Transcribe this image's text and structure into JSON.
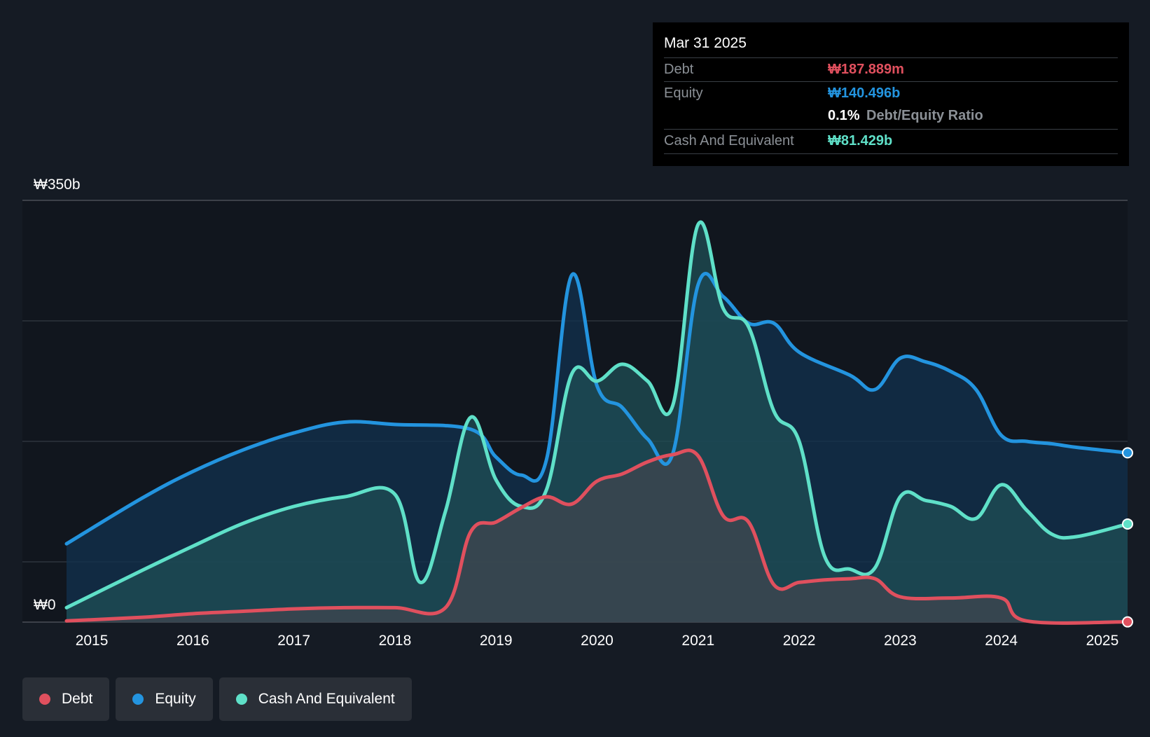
{
  "chart_data": {
    "type": "area",
    "y_unit_labels": {
      "top": "₩350b",
      "bottom": "₩0"
    },
    "ylim": [
      0,
      350
    ],
    "xlim": [
      2014.75,
      2025.25
    ],
    "x_ticks": [
      "2015",
      "2016",
      "2017",
      "2018",
      "2019",
      "2020",
      "2021",
      "2022",
      "2023",
      "2024",
      "2025"
    ],
    "grid": true,
    "series": [
      {
        "name": "Equity",
        "color": "#2394df",
        "fill": "#12314f",
        "points": [
          [
            2014.75,
            65
          ],
          [
            2015.5,
            103
          ],
          [
            2016.0,
            125
          ],
          [
            2016.5,
            143
          ],
          [
            2017.0,
            157
          ],
          [
            2017.5,
            166
          ],
          [
            2018.0,
            164
          ],
          [
            2018.75,
            160
          ],
          [
            2019.0,
            137
          ],
          [
            2019.25,
            122
          ],
          [
            2019.5,
            135
          ],
          [
            2019.75,
            288
          ],
          [
            2020.0,
            196
          ],
          [
            2020.25,
            178
          ],
          [
            2020.5,
            152
          ],
          [
            2020.75,
            140
          ],
          [
            2021.0,
            280
          ],
          [
            2021.25,
            270
          ],
          [
            2021.5,
            248
          ],
          [
            2021.75,
            248
          ],
          [
            2022.0,
            224
          ],
          [
            2022.5,
            205
          ],
          [
            2022.75,
            193
          ],
          [
            2023.0,
            219
          ],
          [
            2023.25,
            216
          ],
          [
            2023.5,
            208
          ],
          [
            2023.75,
            193
          ],
          [
            2024.0,
            155
          ],
          [
            2024.25,
            150
          ],
          [
            2024.5,
            148
          ],
          [
            2024.75,
            145
          ],
          [
            2025.25,
            140.496
          ]
        ]
      },
      {
        "name": "Cash And Equivalent",
        "color": "#5fe0c8",
        "fill": "#1f4f55",
        "points": [
          [
            2014.75,
            12
          ],
          [
            2015.5,
            43
          ],
          [
            2016.0,
            63
          ],
          [
            2016.5,
            82
          ],
          [
            2017.0,
            96
          ],
          [
            2017.5,
            104
          ],
          [
            2018.0,
            106
          ],
          [
            2018.25,
            33
          ],
          [
            2018.5,
            92
          ],
          [
            2018.75,
            170
          ],
          [
            2019.0,
            118
          ],
          [
            2019.25,
            96
          ],
          [
            2019.5,
            110
          ],
          [
            2019.75,
            206
          ],
          [
            2020.0,
            200
          ],
          [
            2020.25,
            214
          ],
          [
            2020.5,
            200
          ],
          [
            2020.75,
            180
          ],
          [
            2021.0,
            330
          ],
          [
            2021.25,
            260
          ],
          [
            2021.5,
            245
          ],
          [
            2021.75,
            175
          ],
          [
            2022.0,
            150
          ],
          [
            2022.25,
            55
          ],
          [
            2022.5,
            44
          ],
          [
            2022.75,
            45
          ],
          [
            2023.0,
            104
          ],
          [
            2023.25,
            101
          ],
          [
            2023.5,
            96
          ],
          [
            2023.75,
            86
          ],
          [
            2024.0,
            114
          ],
          [
            2024.25,
            93
          ],
          [
            2024.5,
            73
          ],
          [
            2024.75,
            71
          ],
          [
            2025.25,
            81.429
          ]
        ]
      },
      {
        "name": "Debt",
        "color": "#e0505e",
        "fill": "#40454f",
        "points": [
          [
            2014.75,
            1
          ],
          [
            2015.5,
            4
          ],
          [
            2016.0,
            7
          ],
          [
            2016.5,
            9
          ],
          [
            2017.0,
            11
          ],
          [
            2017.5,
            12
          ],
          [
            2018.0,
            12
          ],
          [
            2018.5,
            12
          ],
          [
            2018.75,
            75
          ],
          [
            2019.0,
            83
          ],
          [
            2019.25,
            95
          ],
          [
            2019.5,
            104
          ],
          [
            2019.75,
            98
          ],
          [
            2020.0,
            117
          ],
          [
            2020.25,
            123
          ],
          [
            2020.5,
            133
          ],
          [
            2020.75,
            139
          ],
          [
            2021.0,
            138
          ],
          [
            2021.25,
            88
          ],
          [
            2021.5,
            83
          ],
          [
            2021.75,
            31
          ],
          [
            2022.0,
            33
          ],
          [
            2022.25,
            35
          ],
          [
            2022.5,
            36
          ],
          [
            2022.75,
            36
          ],
          [
            2023.0,
            21
          ],
          [
            2023.5,
            20
          ],
          [
            2024.0,
            20
          ],
          [
            2024.25,
            1
          ],
          [
            2025.25,
            0.188
          ]
        ]
      }
    ]
  },
  "tooltip": {
    "date": "Mar 31 2025",
    "debt_label": "Debt",
    "debt_value": "₩187.889m",
    "equity_label": "Equity",
    "equity_value": "₩140.496b",
    "ratio_value": "0.1%",
    "ratio_label": "Debt/Equity Ratio",
    "cash_label": "Cash And Equivalent",
    "cash_value": "₩81.429b",
    "colors": {
      "debt": "#e0505e",
      "equity": "#2394df",
      "cash": "#5fe0c8"
    }
  },
  "legend": [
    {
      "key": "debt",
      "label": "Debt",
      "color": "#e0505e"
    },
    {
      "key": "equity",
      "label": "Equity",
      "color": "#2394df"
    },
    {
      "key": "cash",
      "label": "Cash And Equivalent",
      "color": "#5fe0c8"
    }
  ]
}
